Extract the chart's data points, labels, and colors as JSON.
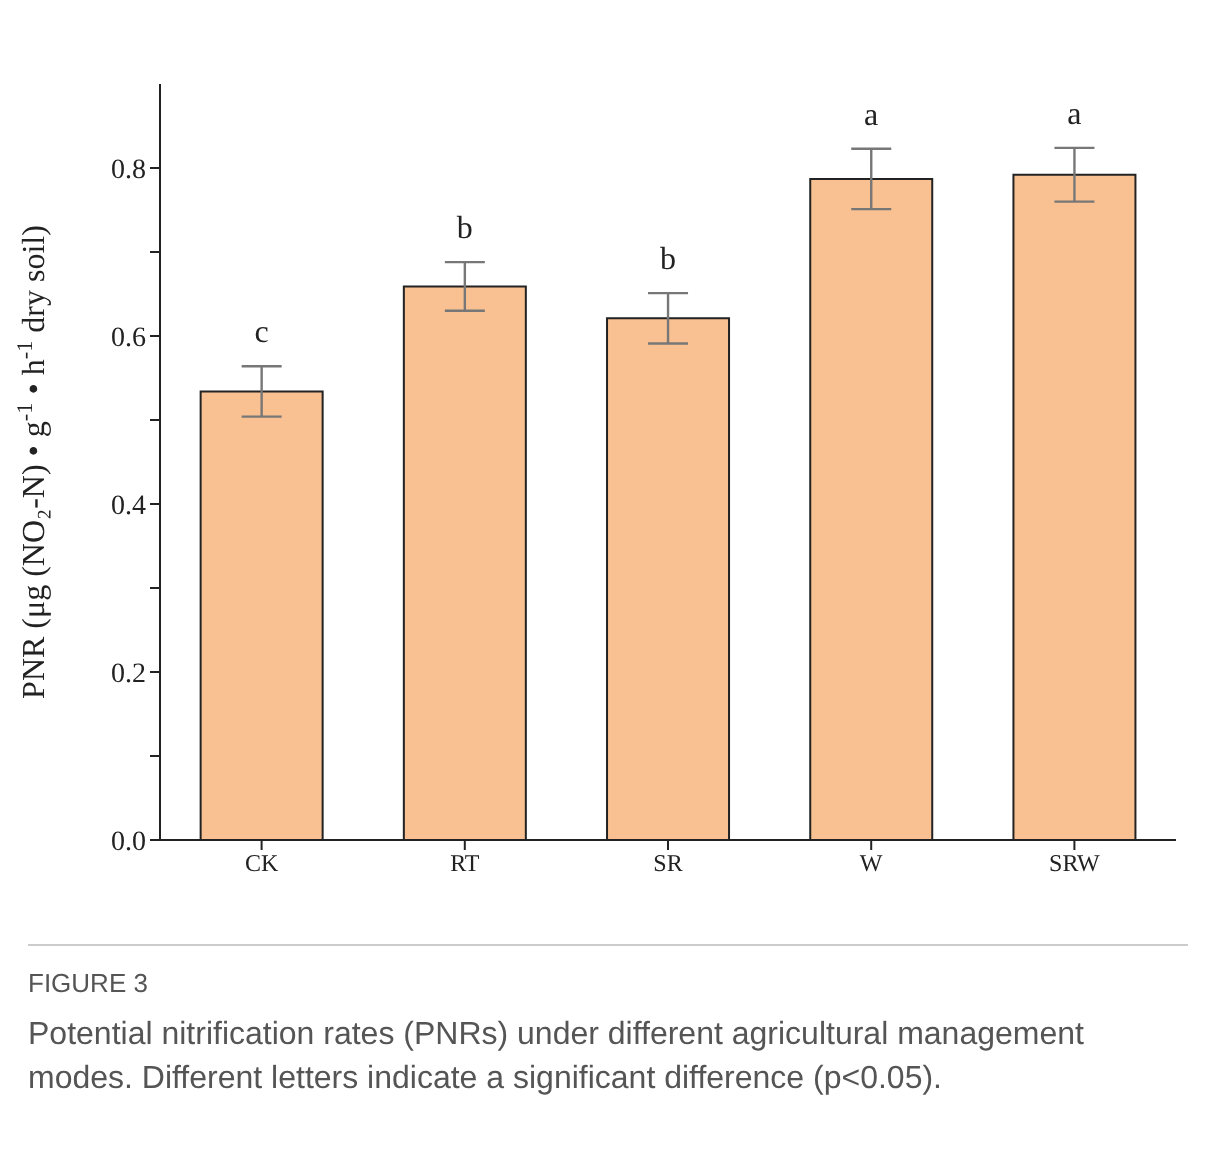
{
  "chart_data": {
    "type": "bar",
    "ylabel": "PNR (μg (NO₂-N) • g$^{-1}$ • h$^{-1}$ dry soil)",
    "categories": [
      "CK",
      "RT",
      "SR",
      "W",
      "SRW"
    ],
    "values": [
      0.534,
      0.659,
      0.621,
      0.787,
      0.792
    ],
    "errors": [
      0.03,
      0.029,
      0.03,
      0.036,
      0.032
    ],
    "color": "#f9c191",
    "ylim": [
      0,
      0.9
    ],
    "yticks": [
      {
        "value": 0,
        "label": "0.0"
      },
      {
        "value": 0.1,
        "label": null
      },
      {
        "value": 0.2,
        "label": "0.2"
      },
      {
        "value": 0.3,
        "label": null
      },
      {
        "value": 0.4,
        "label": "0.4"
      },
      {
        "value": 0.5,
        "label": null
      },
      {
        "value": 0.6,
        "label": "0.6"
      },
      {
        "value": 0.7,
        "label": null
      },
      {
        "value": 0.8,
        "label": "0.8"
      }
    ],
    "grid": false,
    "legend": false,
    "annotations": [
      {
        "text": "c",
        "x": "CK",
        "y": 0.564
      },
      {
        "text": "b",
        "x": "RT",
        "y": 0.688
      },
      {
        "text": "b",
        "x": "SR",
        "y": 0.651
      },
      {
        "text": "a",
        "x": "W",
        "y": 0.823
      },
      {
        "text": "a",
        "x": "SRW",
        "y": 0.824
      },
      "FIGURE 3",
      "Potential nitrification rates (PNRs) under different agricultural management modes. Different letters indicate a significant difference (p<0.05)."
    ]
  }
}
